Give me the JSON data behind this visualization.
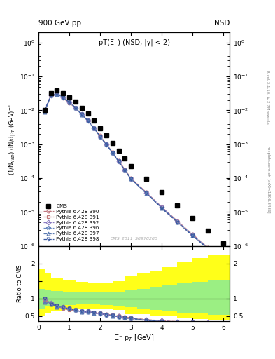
{
  "title_main": "pT(Ξ⁻) (NSD, |y| < 2)",
  "header_left": "900 GeV pp",
  "header_right": "NSD",
  "ylabel_main": "(1/N$_{NSD}$) dN/dp$_T$ (GeV)$^{-1}$",
  "ylabel_ratio": "Ratio to CMS",
  "xlabel": "Ξ⁻ p$_T$ [GeV]",
  "watermark": "CMS_2011_S8978280",
  "right_label": "Rivet 3.1.10, ≥ 2.7M events",
  "right_label2": "mcplots.cern.ch [arXiv:1306.3436]",
  "cms_x": [
    0.2,
    0.4,
    0.6,
    0.8,
    1.0,
    1.2,
    1.4,
    1.6,
    1.8,
    2.0,
    2.2,
    2.4,
    2.6,
    2.8,
    3.0,
    3.5,
    4.0,
    4.5,
    5.0,
    5.5,
    6.0
  ],
  "cms_y": [
    0.01,
    0.032,
    0.038,
    0.032,
    0.024,
    0.018,
    0.012,
    0.008,
    0.005,
    0.003,
    0.0018,
    0.0011,
    0.00065,
    0.00038,
    0.00022,
    9.5e-05,
    3.8e-05,
    1.6e-05,
    6.5e-06,
    2.8e-06,
    1.2e-06
  ],
  "pt_x": [
    0.2,
    0.4,
    0.6,
    0.8,
    1.0,
    1.2,
    1.4,
    1.6,
    1.8,
    2.0,
    2.2,
    2.4,
    2.6,
    2.8,
    3.0,
    3.5,
    4.0,
    4.5,
    5.0,
    5.5,
    6.0
  ],
  "p390_y": [
    0.0095,
    0.028,
    0.03,
    0.024,
    0.017,
    0.012,
    0.0075,
    0.005,
    0.003,
    0.0018,
    0.001,
    0.00058,
    0.00033,
    0.00018,
    0.0001,
    3.8e-05,
    1.4e-05,
    5.5e-06,
    2.2e-06,
    9e-07,
    3.5e-07
  ],
  "p391_y": [
    0.009,
    0.027,
    0.029,
    0.023,
    0.016,
    0.012,
    0.0075,
    0.005,
    0.003,
    0.0017,
    0.00098,
    0.00057,
    0.00032,
    0.00017,
    9.5e-05,
    3.6e-05,
    1.3e-05,
    5e-06,
    2e-06,
    8.5e-07,
    3.2e-07
  ],
  "p392_y": [
    0.01,
    0.028,
    0.03,
    0.024,
    0.017,
    0.012,
    0.0075,
    0.005,
    0.003,
    0.0017,
    0.00098,
    0.00056,
    0.00032,
    0.00017,
    9.6e-05,
    3.7e-05,
    1.4e-05,
    5.3e-06,
    2.1e-06,
    8.7e-07,
    3.3e-07
  ],
  "p396_y": [
    0.009,
    0.027,
    0.029,
    0.024,
    0.017,
    0.012,
    0.0074,
    0.0049,
    0.0029,
    0.0017,
    0.00097,
    0.00056,
    0.00031,
    0.00017,
    9.5e-05,
    3.6e-05,
    1.3e-05,
    5.1e-06,
    2e-06,
    8.3e-07,
    3.1e-07
  ],
  "p397_y": [
    0.009,
    0.027,
    0.029,
    0.024,
    0.017,
    0.012,
    0.0074,
    0.0049,
    0.0029,
    0.0017,
    0.00097,
    0.00055,
    0.00031,
    0.00017,
    9.4e-05,
    3.5e-05,
    1.3e-05,
    5e-06,
    2e-06,
    8.2e-07,
    3e-07
  ],
  "p398_y": [
    0.01,
    0.027,
    0.03,
    0.024,
    0.017,
    0.012,
    0.0075,
    0.005,
    0.003,
    0.0017,
    0.00098,
    0.00056,
    0.00031,
    0.00017,
    9.5e-05,
    3.6e-05,
    1.3e-05,
    5.1e-06,
    2e-06,
    8.3e-07,
    3.1e-07
  ],
  "colors": {
    "cms": "black",
    "p390": "#c07880",
    "p391": "#c07878",
    "p392": "#8878c0",
    "p396": "#6888c0",
    "p397": "#5878b0",
    "p398": "#3858a0"
  },
  "legend_labels": [
    "CMS",
    "Pythia 6.428 390",
    "Pythia 6.428 391",
    "Pythia 6.428 392",
    "Pythia 6.428 396",
    "Pythia 6.428 397",
    "Pythia 6.428 398"
  ],
  "xlim": [
    0.0,
    6.2
  ],
  "ylim_main": [
    1e-06,
    2.0
  ],
  "ylim_ratio": [
    0.35,
    2.5
  ],
  "yb_edges": [
    0.0,
    0.2,
    0.4,
    0.8,
    1.2,
    1.6,
    2.0,
    2.4,
    2.8,
    3.2,
    3.6,
    4.0,
    4.5,
    5.0,
    5.5,
    6.2
  ],
  "yb_lo": [
    0.5,
    0.6,
    0.65,
    0.68,
    0.7,
    0.7,
    0.7,
    0.68,
    0.55,
    0.55,
    0.52,
    0.5,
    0.45,
    0.42,
    0.4,
    0.38
  ],
  "yb_hi": [
    1.85,
    1.72,
    1.6,
    1.52,
    1.47,
    1.45,
    1.45,
    1.5,
    1.65,
    1.72,
    1.8,
    1.9,
    2.05,
    2.15,
    2.25,
    2.35
  ],
  "gb_edges": [
    0.0,
    0.2,
    0.4,
    0.8,
    1.2,
    1.6,
    2.0,
    2.4,
    2.8,
    3.2,
    3.6,
    4.0,
    4.5,
    5.0,
    5.5,
    6.2
  ],
  "gb_lo": [
    0.72,
    0.78,
    0.8,
    0.82,
    0.83,
    0.83,
    0.82,
    0.8,
    0.75,
    0.72,
    0.68,
    0.64,
    0.6,
    0.57,
    0.54,
    0.52
  ],
  "gb_hi": [
    1.28,
    1.25,
    1.22,
    1.2,
    1.18,
    1.17,
    1.18,
    1.2,
    1.25,
    1.28,
    1.32,
    1.37,
    1.43,
    1.48,
    1.53,
    1.58
  ]
}
